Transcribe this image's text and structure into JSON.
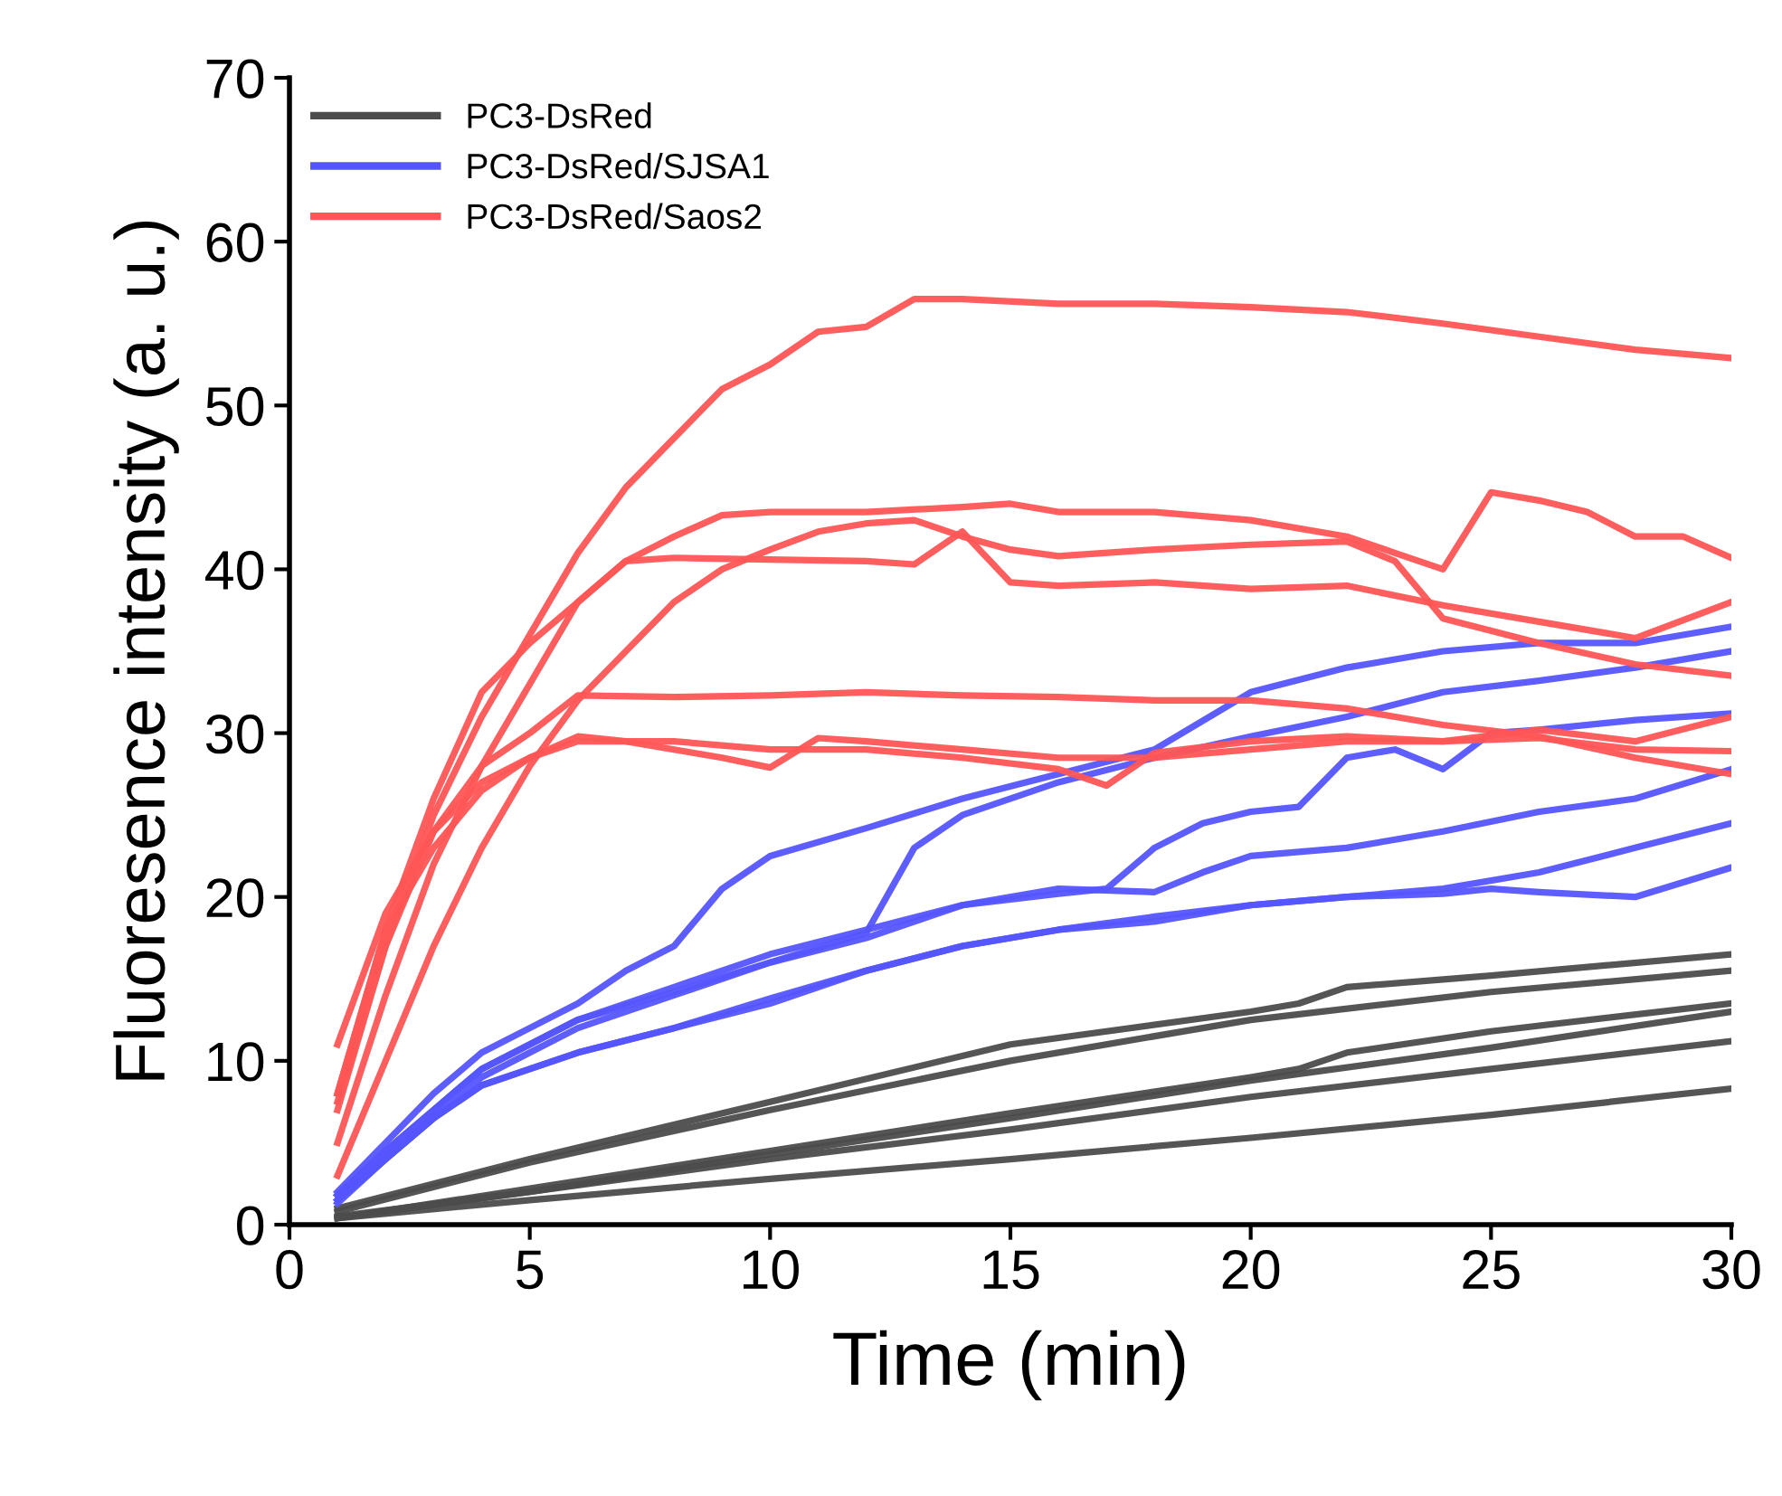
{
  "chart_data": {
    "type": "line",
    "xlabel": "Time (min)",
    "ylabel": "Fluoresence intensity (a. u.)",
    "xlim": [
      0,
      30
    ],
    "ylim": [
      0,
      70
    ],
    "xticks": [
      0,
      5,
      10,
      15,
      20,
      25,
      30
    ],
    "yticks": [
      0,
      10,
      20,
      30,
      40,
      50,
      60,
      70
    ],
    "grid": false,
    "legend": "top left",
    "marker": "none",
    "line_style": "solid",
    "series": [
      {
        "name": "PC3-DsRed",
        "color": "#4c4c4c",
        "x": [
          1,
          5,
          10,
          15,
          20,
          21,
          22,
          25,
          30
        ],
        "values": [
          1,
          4,
          7.5,
          11,
          13,
          13.5,
          14.5,
          15.2,
          16.5
        ]
      },
      {
        "color": "#4c4c4c",
        "x": [
          1,
          5,
          10,
          15,
          20,
          25,
          30
        ],
        "values": [
          0.8,
          3.8,
          7,
          10,
          12.5,
          14.2,
          15.5
        ]
      },
      {
        "color": "#4c4c4c",
        "x": [
          1,
          5,
          10,
          15,
          20,
          21,
          22,
          25,
          30
        ],
        "values": [
          0.4,
          2.2,
          4.5,
          6.8,
          9,
          9.5,
          10.5,
          11.8,
          13.5
        ]
      },
      {
        "color": "#4c4c4c",
        "x": [
          1,
          5,
          10,
          15,
          20,
          25,
          30
        ],
        "values": [
          0.4,
          2,
          4.3,
          6.5,
          8.8,
          10.8,
          13
        ]
      },
      {
        "color": "#4c4c4c",
        "x": [
          1,
          5,
          10,
          15,
          20,
          25,
          30
        ],
        "values": [
          0.5,
          2,
          4,
          5.8,
          7.8,
          9.5,
          11.2
        ]
      },
      {
        "color": "#4c4c4c",
        "x": [
          1,
          5,
          10,
          15,
          20,
          25,
          30
        ],
        "values": [
          0.4,
          1.5,
          2.8,
          4,
          5.3,
          6.7,
          8.3
        ]
      },
      {
        "name": "PC3-DsRed/SJSA1",
        "color": "#5555ff",
        "x": [
          1,
          2,
          3,
          4,
          5,
          6,
          7,
          8,
          9,
          10,
          12,
          14,
          16,
          18,
          20,
          22,
          24,
          26,
          28,
          30
        ],
        "values": [
          2,
          5,
          8,
          10.5,
          12,
          13.5,
          15.5,
          17,
          20.5,
          22.5,
          24.2,
          26,
          27.5,
          29,
          32.5,
          34,
          35,
          35.5,
          35.5,
          36.5
        ]
      },
      {
        "color": "#5555ff",
        "x": [
          1,
          2,
          3,
          4,
          5,
          6,
          8,
          10,
          12,
          13,
          14,
          16,
          18,
          20,
          22,
          24,
          26,
          28,
          30
        ],
        "values": [
          1.8,
          4.5,
          7,
          9.5,
          11,
          12.5,
          14.2,
          16,
          17.8,
          23,
          25,
          27,
          28.5,
          29.8,
          31,
          32.5,
          33.2,
          34,
          35
        ]
      },
      {
        "color": "#5555ff",
        "x": [
          1,
          2,
          3,
          4,
          5,
          6,
          8,
          10,
          12,
          14,
          16,
          17,
          18,
          19,
          20,
          21,
          22,
          23,
          24,
          25,
          26,
          28,
          30
        ],
        "values": [
          1.8,
          4.5,
          7,
          9.5,
          11,
          12.5,
          14.5,
          16.5,
          18,
          19.5,
          20.2,
          20.5,
          23,
          24.5,
          25.2,
          25.5,
          28.5,
          29,
          27.8,
          30,
          30.2,
          30.8,
          31.2
        ]
      },
      {
        "color": "#5555ff",
        "x": [
          1,
          2,
          3,
          4,
          5,
          6,
          8,
          10,
          12,
          14,
          16,
          18,
          19,
          20,
          22,
          24,
          26,
          28,
          30
        ],
        "values": [
          1.5,
          4,
          6.5,
          9,
          10.5,
          12,
          14,
          16,
          17.5,
          19.5,
          20.5,
          20.3,
          21.5,
          22.5,
          23,
          24,
          25.2,
          26,
          27.8
        ]
      },
      {
        "color": "#5555ff",
        "x": [
          1,
          2,
          3,
          4,
          5,
          6,
          8,
          10,
          12,
          14,
          16,
          18,
          20,
          22,
          24,
          26,
          28,
          30
        ],
        "values": [
          1.5,
          4,
          6.5,
          8.5,
          9.5,
          10.5,
          12,
          13.5,
          15.5,
          17,
          18,
          18.5,
          19.5,
          20,
          20.5,
          21.5,
          23,
          24.5
        ]
      },
      {
        "color": "#5555ff",
        "x": [
          1,
          2,
          3,
          4,
          5,
          6,
          8,
          10,
          12,
          14,
          16,
          18,
          20,
          22,
          24,
          25,
          26,
          28,
          30
        ],
        "values": [
          1.3,
          4,
          6.5,
          8.5,
          9.5,
          10.5,
          12,
          13.8,
          15.5,
          17,
          18,
          18.8,
          19.5,
          20,
          20.2,
          20.5,
          20.3,
          20,
          21.8
        ]
      },
      {
        "name": "PC3-DsRed/Saos2",
        "color": "#ff5555",
        "x": [
          1,
          2,
          3,
          4,
          5,
          6,
          7,
          8,
          9,
          10,
          11,
          12,
          13,
          14,
          16,
          18,
          20,
          22,
          24,
          26,
          28,
          30
        ],
        "values": [
          7,
          17,
          25,
          31,
          36,
          41,
          45,
          48,
          51,
          52.5,
          54.5,
          54.8,
          56.5,
          56.5,
          56.2,
          56.2,
          56,
          55.7,
          55,
          54.2,
          53.4,
          52.9
        ]
      },
      {
        "color": "#ff5555",
        "x": [
          1,
          2,
          3,
          4,
          5,
          6,
          7,
          8,
          9,
          10,
          12,
          14,
          15,
          16,
          18,
          20,
          22,
          23,
          24,
          25,
          26,
          27,
          28,
          29,
          30
        ],
        "values": [
          8,
          18,
          26,
          32.5,
          35.5,
          38,
          40.5,
          42,
          43.3,
          43.5,
          43.5,
          43.8,
          44,
          43.5,
          43.5,
          43,
          42,
          41,
          40,
          44.7,
          44.2,
          43.5,
          42,
          42,
          40.7
        ]
      },
      {
        "color": "#ff5555",
        "x": [
          1,
          2,
          3,
          4,
          5,
          6,
          7,
          8,
          10,
          12,
          13,
          14,
          15,
          16,
          18,
          20,
          22,
          24,
          26,
          28,
          30
        ],
        "values": [
          5,
          14,
          22,
          28,
          33,
          38,
          40.5,
          40.7,
          40.6,
          40.5,
          40.3,
          42.3,
          39.2,
          39,
          39.2,
          38.8,
          39,
          37.8,
          36.8,
          35.8,
          38
        ]
      },
      {
        "color": "#ff5555",
        "x": [
          1,
          2,
          3,
          4,
          5,
          6,
          7,
          8,
          9,
          10,
          11,
          12,
          13,
          14,
          15,
          16,
          18,
          20,
          22,
          23,
          24,
          26,
          28,
          30
        ],
        "values": [
          3,
          10,
          17,
          23,
          28,
          32,
          35,
          38,
          40,
          41.2,
          42.3,
          42.8,
          43,
          42,
          41.2,
          40.8,
          41.2,
          41.5,
          41.7,
          40.5,
          37,
          35.5,
          34.2,
          33.5
        ]
      },
      {
        "color": "#ff5555",
        "x": [
          1,
          2,
          3,
          4,
          5,
          6,
          8,
          10,
          12,
          14,
          16,
          18,
          20,
          22,
          24,
          26,
          28,
          30
        ],
        "values": [
          7.5,
          17,
          24,
          28,
          30,
          32.3,
          32.2,
          32.3,
          32.5,
          32.3,
          32.2,
          32,
          32,
          31.5,
          30.5,
          29.8,
          28.5,
          27.5
        ]
      },
      {
        "color": "#ff5555",
        "x": [
          1,
          2,
          3,
          4,
          5,
          6,
          7,
          8,
          9,
          10,
          11,
          12,
          14,
          16,
          18,
          20,
          22,
          24,
          26,
          28,
          30
        ],
        "values": [
          8,
          18,
          23,
          26.5,
          28.5,
          29.8,
          29.5,
          29,
          28.5,
          27.9,
          29.7,
          29.5,
          29,
          28.5,
          28.5,
          29,
          29.5,
          29.5,
          29.7,
          29,
          28.9
        ]
      },
      {
        "color": "#ff5555",
        "x": [
          1,
          2,
          3,
          4,
          5,
          6,
          8,
          10,
          12,
          14,
          16,
          17,
          18,
          20,
          22,
          24,
          26,
          28,
          30
        ],
        "values": [
          11,
          19,
          24,
          27,
          28.5,
          29.5,
          29.5,
          29,
          29,
          28.5,
          27.8,
          26.8,
          28.8,
          29.5,
          29.8,
          29.5,
          30.2,
          29.5,
          31
        ]
      }
    ]
  }
}
